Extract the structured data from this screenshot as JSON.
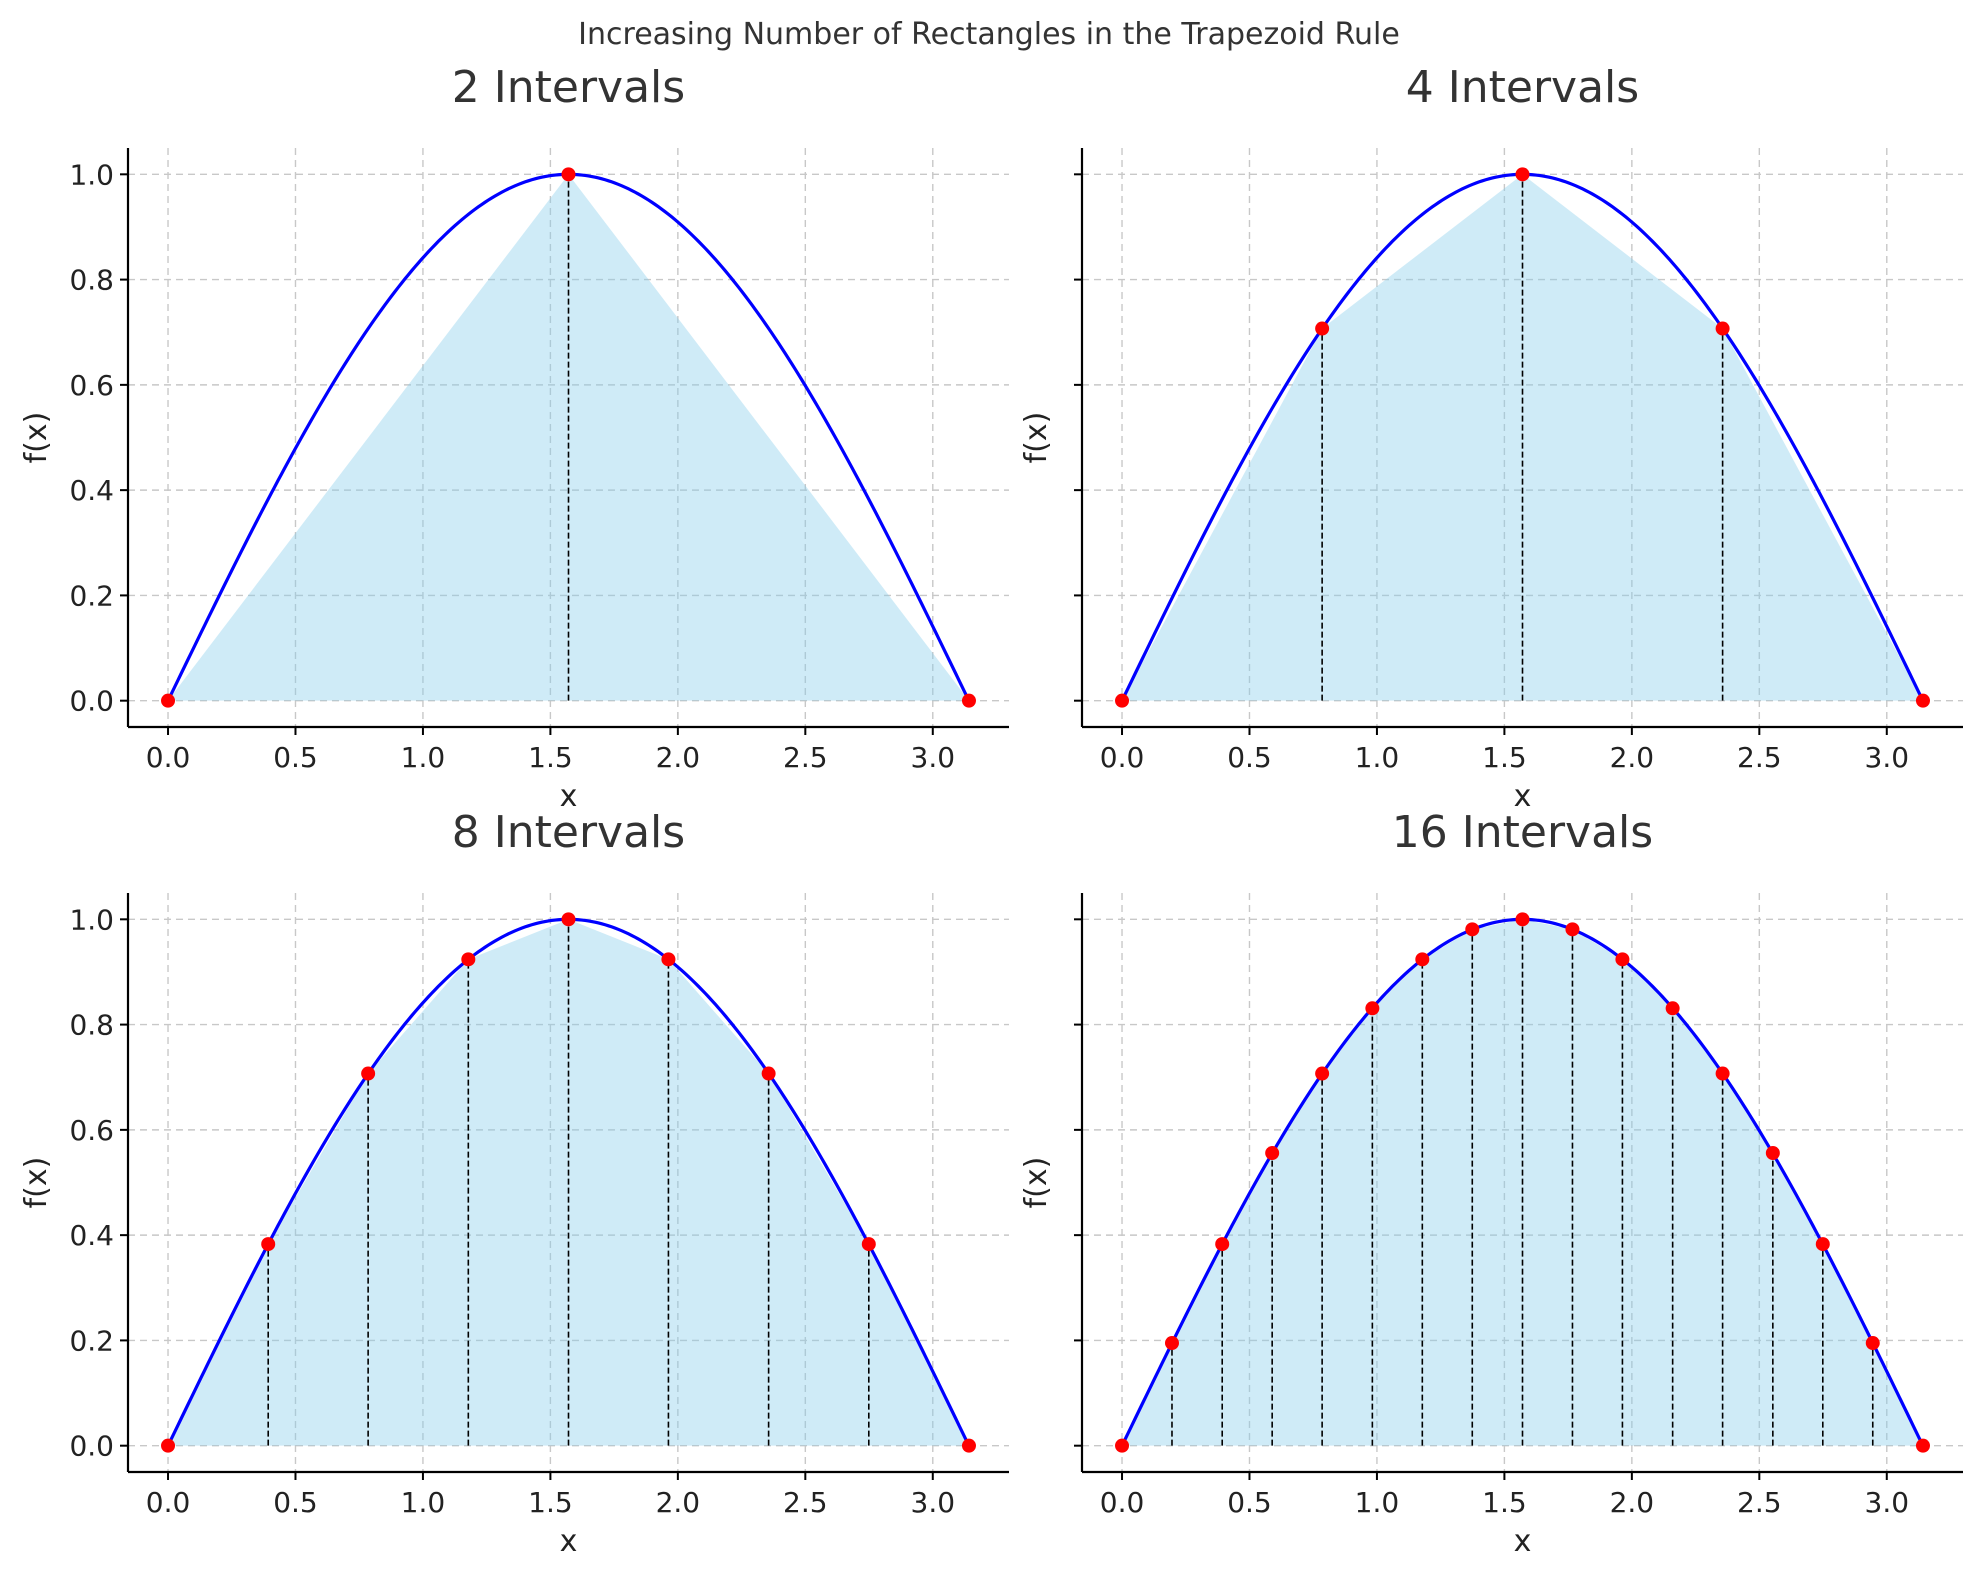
{
  "title": "Increasing Number of Rectangles in the Trapezoid Rule",
  "colors": {
    "curve": "#0000ff",
    "fill": "#87ceeb",
    "points": "#ff0000",
    "dividers": "#000000",
    "grid": "#c8c8c8",
    "text": "#333333"
  },
  "chart_data": [
    {
      "type": "area",
      "title": "2 Intervals",
      "xlabel": "x",
      "ylabel": "f(x)",
      "function": "sin(x)",
      "xlim": [
        -0.157,
        3.299
      ],
      "ylim": [
        -0.05,
        1.05
      ],
      "xticks": [
        "0.0",
        "0.5",
        "1.0",
        "1.5",
        "2.0",
        "2.5",
        "3.0"
      ],
      "yticks": [
        "0.0",
        "0.2",
        "0.4",
        "0.6",
        "0.8",
        "1.0"
      ],
      "show_yticklabels": true,
      "grid": true,
      "intervals": 2,
      "points": {
        "x": [
          0.0,
          1.571,
          3.142
        ],
        "y": [
          0.0,
          1.0,
          0.0
        ]
      }
    },
    {
      "type": "area",
      "title": "4 Intervals",
      "xlabel": "x",
      "ylabel": "f(x)",
      "function": "sin(x)",
      "xlim": [
        -0.157,
        3.299
      ],
      "ylim": [
        -0.05,
        1.05
      ],
      "xticks": [
        "0.0",
        "0.5",
        "1.0",
        "1.5",
        "2.0",
        "2.5",
        "3.0"
      ],
      "yticks": [
        "0.0",
        "0.2",
        "0.4",
        "0.6",
        "0.8",
        "1.0"
      ],
      "show_yticklabels": false,
      "grid": true,
      "intervals": 4,
      "points": {
        "x": [
          0.0,
          0.785,
          1.571,
          2.356,
          3.142
        ],
        "y": [
          0.0,
          0.707,
          1.0,
          0.707,
          0.0
        ]
      }
    },
    {
      "type": "area",
      "title": "8 Intervals",
      "xlabel": "x",
      "ylabel": "f(x)",
      "function": "sin(x)",
      "xlim": [
        -0.157,
        3.299
      ],
      "ylim": [
        -0.05,
        1.05
      ],
      "xticks": [
        "0.0",
        "0.5",
        "1.0",
        "1.5",
        "2.0",
        "2.5",
        "3.0"
      ],
      "yticks": [
        "0.0",
        "0.2",
        "0.4",
        "0.6",
        "0.8",
        "1.0"
      ],
      "show_yticklabels": true,
      "grid": true,
      "intervals": 8,
      "points": {
        "x": [
          0.0,
          0.393,
          0.785,
          1.178,
          1.571,
          1.963,
          2.356,
          2.749,
          3.142
        ],
        "y": [
          0.0,
          0.383,
          0.707,
          0.924,
          1.0,
          0.924,
          0.707,
          0.383,
          0.0
        ]
      }
    },
    {
      "type": "area",
      "title": "16 Intervals",
      "xlabel": "x",
      "ylabel": "f(x)",
      "function": "sin(x)",
      "xlim": [
        -0.157,
        3.299
      ],
      "ylim": [
        -0.05,
        1.05
      ],
      "xticks": [
        "0.0",
        "0.5",
        "1.0",
        "1.5",
        "2.0",
        "2.5",
        "3.0"
      ],
      "yticks": [
        "0.0",
        "0.2",
        "0.4",
        "0.6",
        "0.8",
        "1.0"
      ],
      "show_yticklabels": false,
      "grid": true,
      "intervals": 16,
      "points": {
        "x": [
          0.0,
          0.196,
          0.393,
          0.589,
          0.785,
          0.982,
          1.178,
          1.374,
          1.571,
          1.767,
          1.963,
          2.16,
          2.356,
          2.553,
          2.749,
          2.945,
          3.142
        ],
        "y": [
          0.0,
          0.195,
          0.383,
          0.556,
          0.707,
          0.831,
          0.924,
          0.981,
          1.0,
          0.981,
          0.924,
          0.831,
          0.707,
          0.556,
          0.383,
          0.195,
          0.0
        ]
      }
    }
  ]
}
